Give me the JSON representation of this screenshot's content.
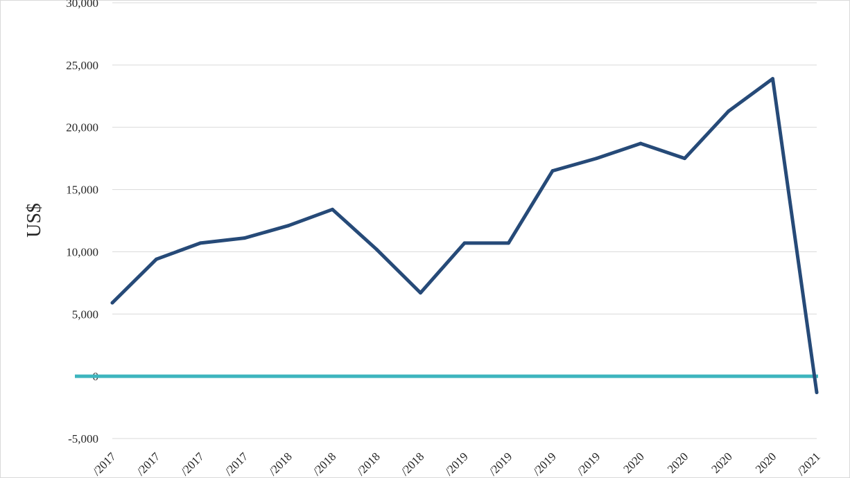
{
  "chart_data": {
    "type": "line",
    "ylabel": "US$",
    "ylim": [
      -5000,
      30000
    ],
    "y_ticks": [
      "-5,000",
      "0",
      "5,000",
      "10,000",
      "15,000",
      "20,000",
      "25,000",
      "30,000"
    ],
    "y_tick_values": [
      -5000,
      0,
      5000,
      10000,
      15000,
      20000,
      25000,
      30000
    ],
    "categories": [
      "/2017",
      "/2017",
      "/2017",
      "/2017",
      "/2018",
      "/2018",
      "/2018",
      "/2018",
      "/2019",
      "/2019",
      "/2019",
      "/2019",
      "2020",
      "2020",
      "2020",
      "2020",
      "/2021"
    ],
    "series": [
      {
        "values": [
          5900,
          9400,
          10700,
          11100,
          12100,
          13400,
          10200,
          6700,
          10700,
          10700,
          16500,
          17500,
          18700,
          17500,
          21300,
          23900,
          -1300
        ]
      }
    ],
    "reference_line": {
      "value": 0
    },
    "grid": true,
    "colors": {
      "series": "#264a78",
      "reference": "#3db5be",
      "grid": "#d9d9d9"
    }
  }
}
